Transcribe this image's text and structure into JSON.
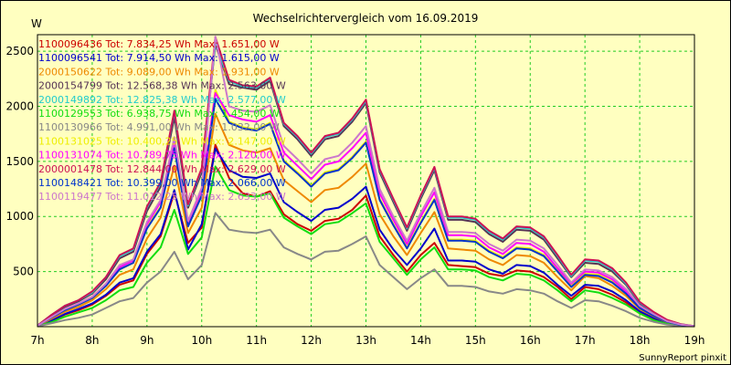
{
  "chart_data": {
    "type": "line",
    "title": "Wechselrichtervergleich vom 16.09.2019",
    "ylabel": "W",
    "xlabel": "",
    "footer": "SunnyReport pinxit",
    "grid": true,
    "legend_position": "top-left",
    "ylim": [
      0,
      2650
    ],
    "y_ticks": [
      500,
      1000,
      1500,
      2000,
      2500
    ],
    "x_ticks": [
      "7h",
      "8h",
      "9h",
      "10h",
      "11h",
      "12h",
      "13h",
      "14h",
      "15h",
      "16h",
      "17h",
      "18h",
      "19h"
    ],
    "x_hours": [
      7.0,
      7.25,
      7.5,
      7.75,
      8.0,
      8.25,
      8.5,
      8.75,
      9.0,
      9.25,
      9.5,
      9.75,
      10.0,
      10.25,
      10.5,
      10.75,
      11.0,
      11.25,
      11.5,
      11.75,
      12.0,
      12.25,
      12.5,
      12.75,
      13.0,
      13.25,
      13.5,
      13.75,
      14.0,
      14.25,
      14.5,
      14.75,
      15.0,
      15.25,
      15.5,
      15.75,
      16.0,
      16.25,
      16.5,
      16.75,
      17.0,
      17.25,
      17.5,
      17.75,
      18.0,
      18.25,
      18.5,
      18.75,
      19.0
    ],
    "series": [
      {
        "legend": "1100096436 Tot: 7.834,25 Wh Max: 1.651,00 W",
        "color": "#cc0000",
        "values": [
          5,
          50,
          110,
          150,
          200,
          280,
          380,
          420,
          660,
          820,
          1220,
          760,
          900,
          1651,
          1350,
          1210,
          1180,
          1230,
          1020,
          930,
          870,
          960,
          980,
          1060,
          1190,
          820,
          650,
          500,
          650,
          760,
          560,
          550,
          540,
          480,
          460,
          510,
          500,
          450,
          360,
          250,
          360,
          340,
          290,
          220,
          130,
          70,
          30,
          10,
          5
        ]
      },
      {
        "legend": "1100096541 Tot: 7.914,50 Wh Max: 1.615,00 W",
        "color": "#0000cc",
        "values": [
          5,
          55,
          115,
          160,
          210,
          290,
          400,
          440,
          680,
          840,
          1240,
          700,
          930,
          1615,
          1420,
          1360,
          1350,
          1390,
          1130,
          1040,
          960,
          1060,
          1080,
          1160,
          1270,
          880,
          700,
          560,
          710,
          890,
          600,
          600,
          590,
          520,
          480,
          560,
          550,
          490,
          380,
          280,
          380,
          370,
          320,
          240,
          140,
          80,
          35,
          12,
          5
        ]
      },
      {
        "legend": "2000150622 Tot: 9.089,00 Wh Max: 1.931,00 W",
        "color": "#ee8800",
        "values": [
          5,
          70,
          135,
          180,
          240,
          340,
          470,
          520,
          800,
          990,
          1460,
          850,
          1080,
          1931,
          1650,
          1600,
          1580,
          1620,
          1330,
          1230,
          1130,
          1240,
          1260,
          1360,
          1480,
          1020,
          820,
          650,
          850,
          1040,
          710,
          700,
          690,
          610,
          560,
          650,
          640,
          580,
          450,
          330,
          460,
          440,
          370,
          280,
          160,
          95,
          40,
          15,
          5
        ]
      },
      {
        "legend": "2000154799 Tot: 12.568,38 Wh Max: 2.563,00 W",
        "color": "#553355",
        "values": [
          10,
          100,
          180,
          230,
          300,
          430,
          620,
          680,
          1050,
          1270,
          1900,
          1080,
          1400,
          2563,
          2200,
          2170,
          2150,
          2230,
          1820,
          1700,
          1550,
          1700,
          1730,
          1860,
          2030,
          1400,
          1130,
          870,
          1160,
          1420,
          970,
          970,
          950,
          840,
          770,
          880,
          870,
          790,
          620,
          450,
          580,
          570,
          500,
          380,
          210,
          125,
          55,
          20,
          5
        ]
      },
      {
        "legend": "2000149892 Tot: 12.825,38 Wh Max: 2.577,00 W",
        "color": "#22cccc",
        "values": [
          10,
          105,
          190,
          240,
          310,
          450,
          640,
          700,
          1080,
          1300,
          1950,
          1100,
          1430,
          2577,
          2230,
          2180,
          2170,
          2250,
          1840,
          1720,
          1570,
          1720,
          1750,
          1880,
          2050,
          1420,
          1150,
          890,
          1180,
          1440,
          990,
          990,
          970,
          860,
          790,
          900,
          890,
          810,
          640,
          460,
          600,
          590,
          520,
          390,
          220,
          130,
          60,
          22,
          5
        ]
      },
      {
        "legend": "1100129553 Tot: 6.938,75 Wh Max: 1.454,00 W",
        "color": "#11dd11",
        "values": [
          5,
          40,
          90,
          130,
          170,
          240,
          330,
          360,
          580,
          720,
          1060,
          660,
          810,
          1454,
          1240,
          1190,
          1180,
          1210,
          990,
          910,
          840,
          930,
          950,
          1030,
          1120,
          770,
          620,
          470,
          610,
          720,
          520,
          520,
          510,
          450,
          420,
          480,
          470,
          420,
          330,
          230,
          330,
          310,
          260,
          200,
          120,
          60,
          25,
          8,
          5
        ]
      },
      {
        "legend": "1100130966 Tot: 4.991,00 Wh Max: 1.032,00 W",
        "color": "#888888",
        "values": [
          3,
          30,
          60,
          80,
          110,
          170,
          230,
          260,
          400,
          500,
          680,
          430,
          560,
          1032,
          880,
          860,
          850,
          880,
          720,
          660,
          610,
          680,
          690,
          750,
          820,
          560,
          450,
          340,
          440,
          520,
          370,
          370,
          360,
          320,
          300,
          340,
          330,
          300,
          230,
          170,
          240,
          230,
          190,
          140,
          80,
          45,
          18,
          6,
          3
        ]
      },
      {
        "legend": "1100131025 Tot: 10.400,25 Wh Max: 2.147,00 W",
        "color": "#eeee00",
        "values": [
          8,
          80,
          150,
          200,
          260,
          370,
          520,
          580,
          900,
          1090,
          1620,
          920,
          1200,
          2147,
          1860,
          1810,
          1790,
          1850,
          1510,
          1400,
          1280,
          1400,
          1430,
          1540,
          1680,
          1160,
          930,
          720,
          950,
          1160,
          790,
          790,
          780,
          690,
          630,
          720,
          710,
          650,
          510,
          370,
          480,
          470,
          410,
          310,
          175,
          105,
          45,
          17,
          5
        ]
      },
      {
        "legend": "1100131074 Tot: 10.789,75 Wh Max: 2.120,00 W",
        "color": "#ff00ff",
        "values": [
          8,
          85,
          155,
          205,
          270,
          380,
          540,
          600,
          930,
          1130,
          1680,
          950,
          1240,
          2120,
          1920,
          1880,
          1860,
          1920,
          1580,
          1460,
          1340,
          1470,
          1500,
          1620,
          1760,
          1210,
          970,
          750,
          1000,
          1220,
          830,
          830,
          820,
          720,
          660,
          760,
          750,
          680,
          530,
          390,
          500,
          490,
          430,
          320,
          180,
          110,
          48,
          18,
          5
        ]
      },
      {
        "legend": "2000001478 Tot: 12.844,00 Wh Max: 2.629,00 W",
        "color": "#cc1155",
        "values": [
          10,
          105,
          190,
          240,
          320,
          450,
          650,
          710,
          1090,
          1310,
          1960,
          1110,
          1440,
          2629,
          2240,
          2190,
          2180,
          2260,
          1850,
          1730,
          1580,
          1730,
          1760,
          1890,
          2060,
          1430,
          1160,
          900,
          1190,
          1450,
          1000,
          1000,
          980,
          870,
          800,
          910,
          900,
          820,
          650,
          470,
          610,
          600,
          530,
          400,
          225,
          135,
          62,
          23,
          5
        ]
      },
      {
        "legend": "1100148421 Tot: 10.399,00 Wh Max: 2.066,00 W",
        "color": "#0033cc",
        "values": [
          8,
          80,
          150,
          200,
          260,
          370,
          520,
          580,
          890,
          1080,
          1620,
          910,
          1190,
          2066,
          1850,
          1800,
          1780,
          1840,
          1500,
          1390,
          1270,
          1390,
          1420,
          1530,
          1670,
          1150,
          920,
          710,
          940,
          1150,
          780,
          780,
          770,
          680,
          620,
          710,
          700,
          640,
          500,
          360,
          470,
          460,
          400,
          300,
          170,
          100,
          44,
          16,
          5
        ]
      },
      {
        "legend": "1100119477 Tot: 11.012,25 Wh Max: 2.633,00 W",
        "color": "#cc77cc",
        "values": [
          8,
          85,
          160,
          210,
          270,
          390,
          560,
          610,
          950,
          1150,
          1720,
          960,
          1260,
          2633,
          2000,
          1960,
          1950,
          2010,
          1640,
          1520,
          1390,
          1520,
          1550,
          1670,
          1820,
          1250,
          1000,
          780,
          1030,
          1260,
          860,
          860,
          850,
          750,
          690,
          790,
          780,
          710,
          560,
          400,
          520,
          510,
          450,
          340,
          190,
          115,
          50,
          19,
          5
        ]
      }
    ]
  }
}
